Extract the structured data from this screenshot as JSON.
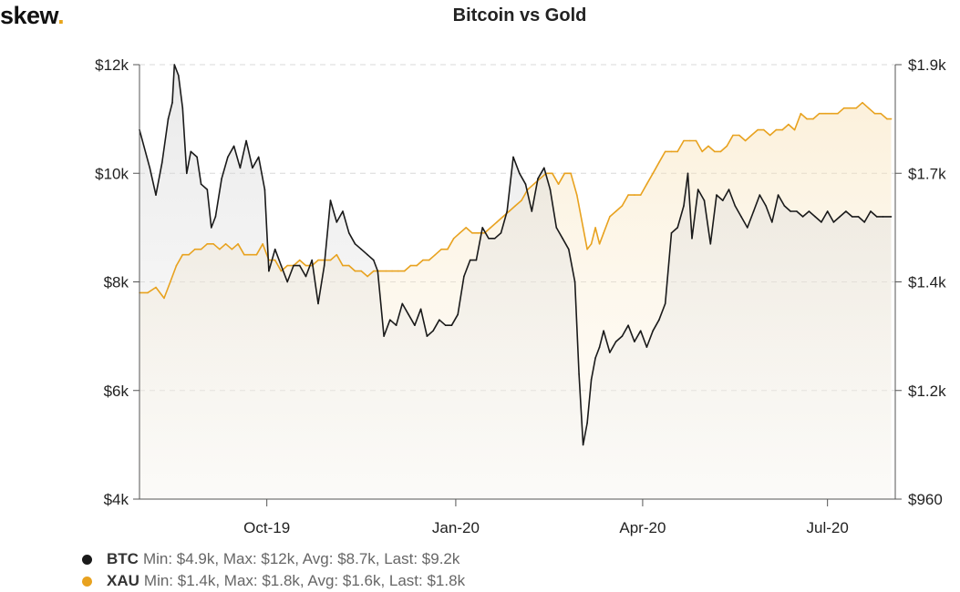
{
  "header": {
    "logo_text": "skew",
    "logo_dot": ".",
    "title": "Bitcoin vs Gold"
  },
  "colors": {
    "btc": "#1a1a1a",
    "xau": "#e8a21f",
    "grid": "#d8d8d8"
  },
  "chart_data": {
    "type": "line",
    "title": "Bitcoin vs Gold",
    "x_labels": [
      "Oct-19",
      "Jan-20",
      "Apr-20",
      "Jul-20"
    ],
    "x_tick_days": [
      62,
      154,
      245,
      335
    ],
    "x_range_days": [
      0,
      368
    ],
    "left_axis": {
      "ticks": [
        "$4k",
        "$6k",
        "$8k",
        "$10k",
        "$12k"
      ],
      "values": [
        4000,
        6000,
        8000,
        10000,
        12000
      ],
      "range": [
        4000,
        12000
      ]
    },
    "right_axis": {
      "ticks": [
        "$960",
        "$1.2k",
        "$1.4k",
        "$1.7k",
        "$1.9k"
      ],
      "values": [
        960,
        1200,
        1400,
        1700,
        1900
      ],
      "range": [
        960,
        1900
      ]
    },
    "series": [
      {
        "name": "BTC",
        "axis": "left",
        "points": [
          [
            0,
            10800
          ],
          [
            5,
            10100
          ],
          [
            8,
            9600
          ],
          [
            11,
            10200
          ],
          [
            14,
            11000
          ],
          [
            16,
            11300
          ],
          [
            17,
            12000
          ],
          [
            19,
            11800
          ],
          [
            21,
            11200
          ],
          [
            23,
            10000
          ],
          [
            25,
            10400
          ],
          [
            28,
            10300
          ],
          [
            30,
            9800
          ],
          [
            33,
            9700
          ],
          [
            35,
            9000
          ],
          [
            37,
            9200
          ],
          [
            40,
            9900
          ],
          [
            43,
            10300
          ],
          [
            46,
            10500
          ],
          [
            49,
            10100
          ],
          [
            52,
            10600
          ],
          [
            55,
            10100
          ],
          [
            58,
            10300
          ],
          [
            61,
            9700
          ],
          [
            63,
            8200
          ],
          [
            66,
            8600
          ],
          [
            69,
            8300
          ],
          [
            72,
            8000
          ],
          [
            75,
            8300
          ],
          [
            78,
            8300
          ],
          [
            81,
            8100
          ],
          [
            84,
            8400
          ],
          [
            87,
            7600
          ],
          [
            90,
            8300
          ],
          [
            93,
            9500
          ],
          [
            96,
            9100
          ],
          [
            99,
            9300
          ],
          [
            102,
            8900
          ],
          [
            105,
            8700
          ],
          [
            108,
            8600
          ],
          [
            111,
            8500
          ],
          [
            114,
            8400
          ],
          [
            116,
            8200
          ],
          [
            119,
            7000
          ],
          [
            122,
            7300
          ],
          [
            125,
            7200
          ],
          [
            128,
            7600
          ],
          [
            131,
            7400
          ],
          [
            134,
            7200
          ],
          [
            137,
            7500
          ],
          [
            140,
            7000
          ],
          [
            143,
            7100
          ],
          [
            146,
            7300
          ],
          [
            149,
            7200
          ],
          [
            152,
            7200
          ],
          [
            155,
            7400
          ],
          [
            158,
            8100
          ],
          [
            161,
            8400
          ],
          [
            164,
            8400
          ],
          [
            167,
            9000
          ],
          [
            170,
            8800
          ],
          [
            173,
            8800
          ],
          [
            176,
            8900
          ],
          [
            179,
            9300
          ],
          [
            182,
            10300
          ],
          [
            185,
            10000
          ],
          [
            188,
            9800
          ],
          [
            191,
            9300
          ],
          [
            194,
            9900
          ],
          [
            197,
            10100
          ],
          [
            200,
            9700
          ],
          [
            203,
            9000
          ],
          [
            206,
            8800
          ],
          [
            209,
            8600
          ],
          [
            212,
            8000
          ],
          [
            214,
            6300
          ],
          [
            216,
            5000
          ],
          [
            218,
            5400
          ],
          [
            220,
            6200
          ],
          [
            222,
            6600
          ],
          [
            224,
            6800
          ],
          [
            226,
            7100
          ],
          [
            229,
            6700
          ],
          [
            232,
            6900
          ],
          [
            235,
            7000
          ],
          [
            238,
            7200
          ],
          [
            241,
            6900
          ],
          [
            244,
            7100
          ],
          [
            247,
            6800
          ],
          [
            250,
            7100
          ],
          [
            253,
            7300
          ],
          [
            256,
            7600
          ],
          [
            259,
            8900
          ],
          [
            262,
            9000
          ],
          [
            265,
            9400
          ],
          [
            267,
            10000
          ],
          [
            269,
            8800
          ],
          [
            272,
            9700
          ],
          [
            275,
            9500
          ],
          [
            278,
            8700
          ],
          [
            281,
            9600
          ],
          [
            284,
            9500
          ],
          [
            287,
            9700
          ],
          [
            290,
            9400
          ],
          [
            293,
            9200
          ],
          [
            296,
            9000
          ],
          [
            299,
            9300
          ],
          [
            302,
            9600
          ],
          [
            305,
            9400
          ],
          [
            308,
            9100
          ],
          [
            311,
            9600
          ],
          [
            314,
            9400
          ],
          [
            317,
            9300
          ],
          [
            320,
            9300
          ],
          [
            323,
            9200
          ],
          [
            326,
            9300
          ],
          [
            329,
            9200
          ],
          [
            332,
            9100
          ],
          [
            335,
            9300
          ],
          [
            338,
            9100
          ],
          [
            341,
            9200
          ],
          [
            344,
            9300
          ],
          [
            347,
            9200
          ],
          [
            350,
            9200
          ],
          [
            353,
            9100
          ],
          [
            356,
            9300
          ],
          [
            359,
            9200
          ],
          [
            362,
            9200
          ],
          [
            366,
            9200
          ]
        ]
      },
      {
        "name": "XAU",
        "axis": "left",
        "points": [
          [
            0,
            7800
          ],
          [
            4,
            7800
          ],
          [
            8,
            7900
          ],
          [
            12,
            7700
          ],
          [
            15,
            8000
          ],
          [
            18,
            8300
          ],
          [
            21,
            8500
          ],
          [
            24,
            8500
          ],
          [
            27,
            8600
          ],
          [
            30,
            8600
          ],
          [
            33,
            8700
          ],
          [
            36,
            8700
          ],
          [
            39,
            8600
          ],
          [
            42,
            8700
          ],
          [
            45,
            8600
          ],
          [
            48,
            8700
          ],
          [
            51,
            8500
          ],
          [
            54,
            8500
          ],
          [
            57,
            8500
          ],
          [
            60,
            8700
          ],
          [
            63,
            8400
          ],
          [
            66,
            8400
          ],
          [
            69,
            8200
          ],
          [
            72,
            8300
          ],
          [
            75,
            8300
          ],
          [
            78,
            8400
          ],
          [
            81,
            8300
          ],
          [
            84,
            8300
          ],
          [
            87,
            8400
          ],
          [
            90,
            8400
          ],
          [
            93,
            8400
          ],
          [
            96,
            8500
          ],
          [
            99,
            8300
          ],
          [
            102,
            8300
          ],
          [
            105,
            8200
          ],
          [
            108,
            8200
          ],
          [
            111,
            8100
          ],
          [
            114,
            8200
          ],
          [
            117,
            8200
          ],
          [
            120,
            8200
          ],
          [
            123,
            8200
          ],
          [
            126,
            8200
          ],
          [
            129,
            8200
          ],
          [
            132,
            8300
          ],
          [
            135,
            8300
          ],
          [
            138,
            8400
          ],
          [
            141,
            8400
          ],
          [
            144,
            8500
          ],
          [
            147,
            8600
          ],
          [
            150,
            8600
          ],
          [
            153,
            8800
          ],
          [
            156,
            8900
          ],
          [
            159,
            9000
          ],
          [
            162,
            8900
          ],
          [
            165,
            8900
          ],
          [
            168,
            8900
          ],
          [
            171,
            9000
          ],
          [
            174,
            9100
          ],
          [
            177,
            9200
          ],
          [
            180,
            9300
          ],
          [
            183,
            9400
          ],
          [
            186,
            9500
          ],
          [
            189,
            9700
          ],
          [
            192,
            9800
          ],
          [
            195,
            9900
          ],
          [
            198,
            10000
          ],
          [
            201,
            10000
          ],
          [
            204,
            9800
          ],
          [
            207,
            10000
          ],
          [
            210,
            10000
          ],
          [
            213,
            9600
          ],
          [
            216,
            9000
          ],
          [
            218,
            8600
          ],
          [
            220,
            8700
          ],
          [
            222,
            9000
          ],
          [
            224,
            8700
          ],
          [
            226,
            8900
          ],
          [
            229,
            9200
          ],
          [
            232,
            9300
          ],
          [
            235,
            9400
          ],
          [
            238,
            9600
          ],
          [
            241,
            9600
          ],
          [
            244,
            9600
          ],
          [
            247,
            9800
          ],
          [
            250,
            10000
          ],
          [
            253,
            10200
          ],
          [
            256,
            10400
          ],
          [
            259,
            10400
          ],
          [
            262,
            10400
          ],
          [
            265,
            10600
          ],
          [
            268,
            10600
          ],
          [
            271,
            10600
          ],
          [
            274,
            10400
          ],
          [
            277,
            10500
          ],
          [
            280,
            10400
          ],
          [
            283,
            10400
          ],
          [
            286,
            10500
          ],
          [
            289,
            10700
          ],
          [
            292,
            10700
          ],
          [
            295,
            10600
          ],
          [
            298,
            10700
          ],
          [
            301,
            10800
          ],
          [
            304,
            10800
          ],
          [
            307,
            10700
          ],
          [
            310,
            10800
          ],
          [
            313,
            10800
          ],
          [
            316,
            10900
          ],
          [
            319,
            10800
          ],
          [
            322,
            11100
          ],
          [
            325,
            11000
          ],
          [
            328,
            11000
          ],
          [
            331,
            11100
          ],
          [
            334,
            11100
          ],
          [
            337,
            11100
          ],
          [
            340,
            11100
          ],
          [
            343,
            11200
          ],
          [
            346,
            11200
          ],
          [
            349,
            11200
          ],
          [
            352,
            11300
          ],
          [
            355,
            11200
          ],
          [
            358,
            11100
          ],
          [
            361,
            11100
          ],
          [
            364,
            11000
          ],
          [
            366,
            11000
          ]
        ]
      }
    ]
  },
  "legend": [
    {
      "name": "BTC",
      "stats": "Min: $4.9k, Max: $12k, Avg: $8.7k, Last: $9.2k",
      "color": "#1a1a1a"
    },
    {
      "name": "XAU",
      "stats": "Min: $1.4k, Max: $1.8k, Avg: $1.6k, Last: $1.8k",
      "color": "#e8a21f"
    }
  ]
}
